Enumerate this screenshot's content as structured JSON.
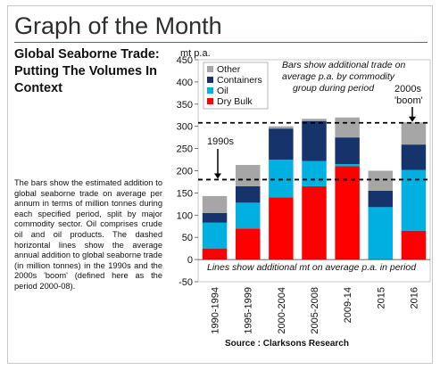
{
  "page": {
    "title": "Graph of the Month",
    "subtitle": "Global Seaborne Trade: Putting The Volumes In Context",
    "description": "The bars show the estimated addition to global seaborne trade on average per annum in terms of million tonnes during each specified period, split by major commodity sector. Oil comprises crude oil and oil products. The dashed horizontal lines show the average annual addition to global seaborne trade (in million tonnes) in the 1990s and the 2000s 'boom' (defined here as the period 2000-08).",
    "source": "Source : Clarksons Research"
  },
  "chart_data": {
    "type": "bar",
    "stacked": true,
    "unit_label": "mt p.a.",
    "ylim": [
      -50,
      450
    ],
    "yticks": [
      -50,
      0,
      50,
      100,
      150,
      200,
      250,
      300,
      350,
      400,
      450
    ],
    "categories": [
      "1990-1994",
      "1995-1999",
      "2000-2004",
      "2005-2008",
      "2009-14",
      "2015",
      "2016"
    ],
    "series": [
      {
        "name": "Dry Bulk",
        "color": "#ff0000",
        "values": [
          25,
          70,
          140,
          165,
          210,
          0,
          65
        ]
      },
      {
        "name": "Oil",
        "color": "#00b0e0",
        "values": [
          58,
          58,
          85,
          57,
          5,
          118,
          137
        ]
      },
      {
        "name": "Containers",
        "color": "#17336b",
        "values": [
          22,
          37,
          70,
          90,
          60,
          37,
          57
        ]
      },
      {
        "name": "Other",
        "color": "#a6a6a6",
        "values": [
          38,
          48,
          5,
          5,
          45,
          45,
          50
        ]
      }
    ],
    "legend": [
      "Other",
      "Containers",
      "Oil",
      "Dry Bulk"
    ],
    "legend_position": "top-left",
    "reference_lines": [
      {
        "label": "1990s",
        "value": 180
      },
      {
        "label": "2000s 'boom'",
        "value": 308
      }
    ],
    "annotations": {
      "top": "Bars show additional trade on average p.a. by commodity group during period",
      "bottom": "Lines show additional mt on average p.a. in period"
    }
  }
}
